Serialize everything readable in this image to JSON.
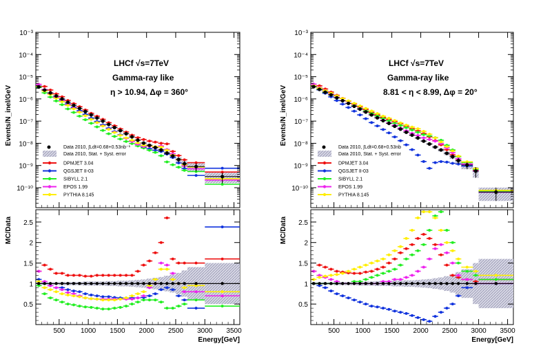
{
  "figure": {
    "x_title": "Energy[GeV]",
    "x_ticks": [
      "500",
      "1000",
      "1500",
      "2000",
      "2500",
      "3000",
      "3500"
    ],
    "y_top_title": "Events/N_inel/GeV",
    "y_bottom_title": "MC/Data"
  },
  "colors": {
    "DPMJET 3.04": "#ee1111",
    "QGSJET II-03": "#1133dd",
    "SIBYLL 2.1": "#22ee22",
    "EPOS 1.99": "#ee22ee",
    "PYTHIA 8.145": "#ffee00",
    "data": "#000000"
  },
  "chart_data": [
    {
      "type": "scatter",
      "panel": "left",
      "annotation": {
        "line1": "LHCf √s=7TeV",
        "line2": "Gamma-ray like",
        "line3": "η > 10.94, Δφ = 360°"
      },
      "legend": {
        "data_label": "Data 2010, ∫Ldt=0.68+0.53nb⁻¹",
        "band_label": "Data 2010, Stat. + Syst. error",
        "models": [
          "DPMJET 3.04",
          "QGSJET II-03",
          "SIBYLL 2.1",
          "EPOS 1.99",
          "PYTHIA 8.145"
        ]
      },
      "xlim": [
        100,
        3600
      ],
      "ylim_log_top": [
        -10.9,
        -3
      ],
      "y_ticks_top": [
        "10⁻³",
        "10⁻⁴",
        "10⁻⁵",
        "10⁻⁶",
        "10⁻⁷",
        "10⁻⁸",
        "10⁻⁹",
        "10⁻¹⁰"
      ],
      "ylim_ratio": [
        0,
        2.8
      ],
      "ratio_ticks": [
        "0.5",
        "1",
        "1.5",
        "2",
        "2.5"
      ],
      "bins": [
        100,
        200,
        300,
        400,
        500,
        600,
        700,
        800,
        900,
        1000,
        1100,
        1200,
        1300,
        1400,
        1500,
        1600,
        1700,
        1800,
        1900,
        2000,
        2100,
        2200,
        2300,
        2400,
        2500,
        2600,
        2700,
        3000,
        3600
      ],
      "data_log10": [
        -5.46,
        -5.6,
        -5.73,
        -5.87,
        -6.0,
        -6.15,
        -6.29,
        -6.43,
        -6.57,
        -6.72,
        -6.86,
        -7.0,
        -7.15,
        -7.29,
        -7.43,
        -7.57,
        -7.71,
        -7.86,
        -7.99,
        -8.09,
        -8.19,
        -8.3,
        -8.44,
        -8.57,
        -8.73,
        -8.92,
        -9.05,
        -9.5
      ],
      "error_rel": [
        0.03,
        0.03,
        0.03,
        0.03,
        0.04,
        0.04,
        0.04,
        0.04,
        0.05,
        0.05,
        0.05,
        0.05,
        0.06,
        0.06,
        0.07,
        0.07,
        0.08,
        0.09,
        0.1,
        0.12,
        0.14,
        0.16,
        0.19,
        0.22,
        0.26,
        0.32,
        0.4,
        0.5
      ],
      "ratios": {
        "DPMJET 3.04": [
          1.3,
          1.45,
          1.35,
          1.25,
          1.25,
          1.2,
          1.2,
          1.2,
          1.18,
          1.18,
          1.2,
          1.2,
          1.2,
          1.2,
          1.2,
          1.2,
          1.2,
          1.3,
          1.45,
          1.55,
          1.75,
          2.0,
          2.6,
          1.6,
          1.5,
          1.5,
          1.5,
          1.6
        ],
        "QGSJET II-03": [
          1.1,
          1.0,
          0.95,
          0.9,
          0.9,
          0.85,
          0.82,
          0.8,
          0.75,
          0.72,
          0.7,
          0.68,
          0.68,
          0.66,
          0.65,
          0.65,
          0.65,
          0.65,
          0.66,
          0.7,
          0.75,
          0.85,
          0.9,
          0.85,
          0.7,
          0.6,
          0.4,
          2.38
        ],
        "SIBYLL 2.1": [
          0.95,
          0.75,
          0.65,
          0.6,
          0.55,
          0.5,
          0.48,
          0.45,
          0.43,
          0.42,
          0.4,
          0.38,
          0.38,
          0.4,
          0.42,
          0.45,
          0.5,
          0.55,
          0.6,
          0.6,
          0.6,
          0.55,
          0.4,
          0.4,
          0.45,
          0.5,
          0.6,
          0.45
        ],
        "EPOS 1.99": [
          1.3,
          1.05,
          0.95,
          0.9,
          0.85,
          0.78,
          0.75,
          0.7,
          0.65,
          0.63,
          0.62,
          0.62,
          0.62,
          0.62,
          0.62,
          0.62,
          0.62,
          0.65,
          0.7,
          0.9,
          1.0,
          1.5,
          1.45,
          1.25,
          1.0,
          0.8,
          0.8,
          0.7
        ],
        "PYTHIA 8.145": [
          1.05,
          0.9,
          0.85,
          0.8,
          0.75,
          0.72,
          0.7,
          0.68,
          0.65,
          0.63,
          0.62,
          0.6,
          0.6,
          0.6,
          0.62,
          0.65,
          0.7,
          0.75,
          0.8,
          0.95,
          1.1,
          1.35,
          1.35,
          1.1,
          1.0,
          0.9,
          0.95,
          0.8
        ]
      }
    },
    {
      "type": "scatter",
      "panel": "right",
      "annotation": {
        "line1": "LHCf √s=7TeV",
        "line2": "Gamma-ray like",
        "line3": "8.81 < η < 8.99, Δφ = 20°"
      },
      "legend": {
        "data_label": "Data 2010, ∫Ldt=0.68+0.53nb",
        "band_label": "Data 2010, Stat. + Syst. error",
        "models": [
          "DPMJET 3.04",
          "QGSJET II-03",
          "SIBYLL 2.1",
          "EPOS 1.99",
          "PYTHIA 8.145"
        ]
      },
      "xlim": [
        100,
        3600
      ],
      "ylim_log_top": [
        -10.9,
        -3
      ],
      "y_ticks_top": [
        "10⁻³",
        "10⁻⁴",
        "10⁻⁵",
        "10⁻⁶",
        "10⁻⁷",
        "10⁻⁸",
        "10⁻⁹",
        "10⁻¹⁰"
      ],
      "ylim_ratio": [
        0,
        2.8
      ],
      "ratio_ticks": [
        "0.5",
        "1",
        "1.5",
        "2",
        "2.5"
      ],
      "bins": [
        100,
        200,
        300,
        400,
        500,
        600,
        700,
        800,
        900,
        1000,
        1100,
        1200,
        1300,
        1400,
        1500,
        1600,
        1700,
        1800,
        1900,
        2000,
        2100,
        2200,
        2300,
        2400,
        2500,
        2600,
        2700,
        2900,
        3000,
        3600
      ],
      "data_log10": [
        -5.45,
        -5.57,
        -5.7,
        -5.82,
        -5.95,
        -6.08,
        -6.2,
        -6.33,
        -6.46,
        -6.59,
        -6.72,
        -6.85,
        -6.98,
        -7.1,
        -7.23,
        -7.36,
        -7.5,
        -7.63,
        -7.76,
        -7.9,
        -8.03,
        -8.17,
        -8.3,
        -8.45,
        -8.6,
        -8.78,
        -8.98,
        -9.25,
        -10.2
      ],
      "error_rel": [
        0.03,
        0.03,
        0.03,
        0.03,
        0.04,
        0.04,
        0.04,
        0.04,
        0.05,
        0.05,
        0.05,
        0.06,
        0.06,
        0.06,
        0.07,
        0.07,
        0.08,
        0.08,
        0.09,
        0.1,
        0.11,
        0.13,
        0.15,
        0.18,
        0.22,
        0.28,
        0.35,
        0.5,
        0.6
      ],
      "ratios": {
        "DPMJET 3.04": [
          1.3,
          1.45,
          1.4,
          1.35,
          1.3,
          1.28,
          1.26,
          1.25,
          1.25,
          1.28,
          1.3,
          1.35,
          1.4,
          1.5,
          1.6,
          1.75,
          1.85,
          1.95,
          2.1,
          2.2,
          2.1,
          1.95,
          1.7,
          1.45,
          1.2,
          1.15,
          1.1,
          1.05,
          1.1
        ],
        "QGSJET II-03": [
          1.0,
          0.95,
          0.9,
          0.82,
          0.75,
          0.7,
          0.65,
          0.6,
          0.55,
          0.5,
          0.45,
          0.43,
          0.4,
          0.37,
          0.33,
          0.3,
          0.27,
          0.22,
          0.17,
          0.12,
          0.08,
          0.2,
          0.3,
          0.4,
          0.5,
          0.7,
          0.9,
          1.0,
          1.0
        ],
        "SIBYLL 2.1": [
          1.0,
          1.0,
          1.0,
          1.0,
          1.0,
          1.0,
          1.0,
          1.05,
          1.05,
          1.1,
          1.15,
          1.2,
          1.25,
          1.3,
          1.35,
          1.45,
          1.6,
          1.7,
          1.8,
          1.95,
          2.3,
          2.65,
          2.75,
          2.3,
          2.0,
          1.5,
          1.3,
          1.2,
          1.1
        ],
        "EPOS 1.99": [
          1.3,
          1.2,
          1.15,
          1.1,
          1.05,
          1.0,
          1.0,
          1.0,
          1.0,
          1.0,
          1.0,
          1.0,
          1.05,
          1.05,
          1.1,
          1.1,
          1.15,
          1.2,
          1.3,
          1.4,
          1.6,
          1.85,
          1.95,
          1.75,
          1.5,
          1.2,
          1.1,
          1.0,
          1.0
        ],
        "PYTHIA 8.145": [
          1.1,
          1.15,
          1.18,
          1.2,
          1.22,
          1.25,
          1.3,
          1.35,
          1.4,
          1.45,
          1.5,
          1.55,
          1.6,
          1.7,
          1.8,
          1.9,
          2.1,
          2.3,
          2.6,
          2.75,
          2.75,
          2.6,
          2.3,
          2.0,
          1.8,
          1.6,
          1.4,
          1.3,
          1.2
        ]
      }
    }
  ]
}
